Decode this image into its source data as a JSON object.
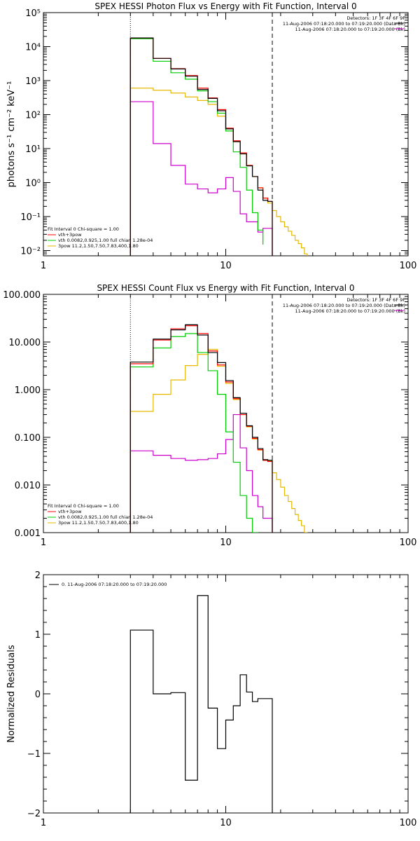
{
  "chart_data": [
    {
      "type": "line",
      "title": "SPEX HESSI Photon Flux vs Energy with Fit Function, Interval 0",
      "ylabel": "photons s⁻¹ cm⁻² keV⁻¹",
      "xlabel": "",
      "x_scale": "log",
      "y_scale": "log",
      "xlim": [
        1,
        100
      ],
      "ylim": [
        0.007,
        100000
      ],
      "x_ticks": [
        1,
        10,
        100
      ],
      "x_tick_labels": [
        "1",
        "10",
        "100"
      ],
      "y_ticks": [
        0.01,
        0.1,
        1,
        10,
        100,
        1000,
        10000,
        100000
      ],
      "y_tick_labels": [
        "10⁻²",
        "10⁻¹",
        "10⁰",
        "10¹",
        "10²",
        "10³",
        "10⁴",
        "10⁵"
      ],
      "vlines": [
        {
          "x": 3,
          "style": "dotted"
        },
        {
          "x": 18,
          "style": "dashed"
        }
      ],
      "legend_top_right": [
        "Detectors: 1F 3F 4F 6F 9F",
        "11-Aug-2006 07:18:20.000 to 07:19:20.000 (Data-Bk)",
        "11-Aug-2006 07:18:20.000 to 07:19:20.000 (Bk)"
      ],
      "legend_bottom_left": {
        "header": "Fit Interval 0   Chi-square = 1.00",
        "entries": [
          "vth+3pow",
          "vth 0.0082,0.925,1.00  full chian 1.28e-04",
          "3pow 11.2,1.50,7.50,7.83,400,1.80"
        ]
      },
      "colors": {
        "data": "#000000",
        "background": "#cc00cc",
        "total": "#ff0000",
        "thermal": "#00cc00",
        "power": "#e6b800"
      },
      "series": [
        {
          "name": "",
          "key": "data",
          "edges": [
            3,
            4,
            5,
            6,
            7,
            8,
            9,
            10,
            11,
            12,
            13,
            14,
            15,
            16,
            17,
            18
          ],
          "values": [
            18000,
            4500,
            2200,
            1350,
            550,
            300,
            130,
            38,
            16,
            7,
            3.1,
            1.5,
            0.6,
            0.3,
            0.28
          ]
        },
        {
          "name": "vth+3pow",
          "key": "total",
          "edges": [
            3,
            4,
            5,
            6,
            7,
            8,
            9,
            10,
            11,
            12,
            13,
            14,
            15,
            16,
            17,
            18
          ],
          "values": [
            18000,
            4500,
            2250,
            1400,
            600,
            310,
            140,
            40,
            17,
            7.5,
            3.2,
            1.5,
            0.7,
            0.35,
            0.28
          ]
        },
        {
          "name": "vth 0.0082,0.925,1.00  full chian 1.28e-04",
          "key": "thermal",
          "edges": [
            3,
            4,
            5,
            6,
            7,
            8,
            9,
            10,
            11,
            12,
            13,
            14,
            15,
            16
          ],
          "values": [
            17000,
            3700,
            1700,
            1100,
            500,
            240,
            110,
            33,
            8,
            2.8,
            0.6,
            0.13,
            0.04,
            0.015
          ]
        },
        {
          "name": "3pow 11.2,1.50,7.50,7.83,400,1.80",
          "key": "power",
          "edges": [
            3,
            4,
            5,
            6,
            7,
            8,
            9,
            10,
            11,
            12,
            13,
            14,
            15,
            16,
            17,
            18,
            19,
            20,
            21,
            22,
            23,
            24,
            25,
            26,
            27,
            28
          ],
          "values": [
            600,
            520,
            430,
            330,
            260,
            200,
            90,
            38,
            16,
            7,
            3.2,
            1.5,
            0.7,
            0.35,
            0.25,
            0.15,
            0.1,
            0.07,
            0.05,
            0.037,
            0.028,
            0.02,
            0.016,
            0.012,
            0.008
          ]
        },
        {
          "name": "",
          "key": "background",
          "edges": [
            3,
            4,
            5,
            6,
            7,
            8,
            9,
            10,
            11,
            12,
            13,
            14,
            15,
            16,
            17,
            18
          ],
          "values": [
            240,
            14,
            3.2,
            0.9,
            0.65,
            0.5,
            0.65,
            1.4,
            0.55,
            0.12,
            0.07,
            0.07,
            0.035,
            0.045,
            0.045
          ]
        }
      ]
    },
    {
      "type": "line",
      "title": "SPEX HESSI Count Flux vs Energy with Fit Function, Interval 0",
      "ylabel": "",
      "xlabel": "",
      "x_scale": "log",
      "y_scale": "log",
      "xlim": [
        1,
        100
      ],
      "ylim": [
        0.001,
        100
      ],
      "x_ticks": [
        1,
        10,
        100
      ],
      "x_tick_labels": [
        "1",
        "10",
        "100"
      ],
      "y_ticks": [
        0.001,
        0.01,
        0.1,
        1,
        10,
        100
      ],
      "y_tick_labels": [
        "0.001",
        "0.010",
        "0.100",
        "1.000",
        "10.000",
        "100.000"
      ],
      "vlines": [
        {
          "x": 3,
          "style": "dotted"
        },
        {
          "x": 18,
          "style": "dashed"
        }
      ],
      "legend_top_right": [
        "Detectors: 1F 3F 4F 6F 9F",
        "11-Aug-2006 07:18:20.000 to 07:19:20.000 (Data-Bk)",
        "11-Aug-2006 07:18:20.000 to 07:19:20.000 (Bk)"
      ],
      "legend_bottom_left": {
        "header": "Fit Interval 0   Chi-square = 1.00",
        "entries": [
          "vth+3pow",
          "vth 0.0082,0.925,1.00  full chian 1.28e-04",
          "3pow 11.2,1.50,7.50,7.83,400,1.80"
        ]
      },
      "colors": {
        "data": "#000000",
        "background": "#cc00cc",
        "total": "#ff0000",
        "thermal": "#00cc00",
        "power": "#e6b800"
      },
      "series": [
        {
          "name": "",
          "key": "data",
          "edges": [
            3,
            4,
            5,
            6,
            7,
            8,
            9,
            10,
            11,
            12,
            13,
            14,
            15,
            16,
            17,
            18
          ],
          "values": [
            3.8,
            11.5,
            18,
            23,
            14,
            6,
            3.7,
            1.55,
            0.68,
            0.32,
            0.175,
            0.1,
            0.058,
            0.034,
            0.033
          ]
        },
        {
          "name": "vth+3pow",
          "key": "total",
          "edges": [
            3,
            4,
            5,
            6,
            7,
            8,
            9,
            10,
            11,
            12,
            13,
            14,
            15,
            16,
            17,
            18
          ],
          "values": [
            3.5,
            11,
            19,
            22,
            15,
            6.5,
            3.3,
            1.45,
            0.65,
            0.3,
            0.17,
            0.095,
            0.055,
            0.033,
            0.031
          ]
        },
        {
          "name": "vth 0.0082,0.925,1.00  full chian 1.28e-04",
          "key": "thermal",
          "edges": [
            3,
            4,
            5,
            6,
            7,
            8,
            9,
            10,
            11,
            12,
            13,
            14,
            15
          ],
          "values": [
            3.0,
            7.5,
            13,
            15,
            6,
            2.5,
            0.8,
            0.13,
            0.03,
            0.006,
            0.002,
            0.0009
          ]
        },
        {
          "name": "3pow 11.2,1.50,7.50,7.83,400,1.80",
          "key": "power",
          "edges": [
            3,
            4,
            5,
            6,
            7,
            8,
            9,
            10,
            11,
            12,
            13,
            14,
            15,
            16,
            17,
            18,
            19,
            20,
            21,
            22,
            23,
            24,
            25,
            26,
            27,
            28
          ],
          "values": [
            0.35,
            0.8,
            1.6,
            3.2,
            5.5,
            7,
            3.1,
            1.35,
            0.62,
            0.3,
            0.165,
            0.092,
            0.054,
            0.033,
            0.032,
            0.018,
            0.013,
            0.009,
            0.006,
            0.0045,
            0.0032,
            0.0024,
            0.0018,
            0.0014,
            0.001
          ]
        },
        {
          "name": "",
          "key": "background",
          "edges": [
            3,
            4,
            5,
            6,
            7,
            8,
            9,
            10,
            11,
            12,
            13,
            14,
            15,
            16,
            17,
            18
          ],
          "values": [
            0.052,
            0.042,
            0.036,
            0.033,
            0.034,
            0.036,
            0.045,
            0.09,
            0.3,
            0.06,
            0.02,
            0.006,
            0.0035,
            0.002,
            0.002
          ]
        }
      ]
    },
    {
      "type": "line",
      "title": "",
      "ylabel": "Normalized Residuals",
      "xlabel": "",
      "x_scale": "log",
      "y_scale": "linear",
      "xlim": [
        1,
        100
      ],
      "ylim": [
        -2,
        2
      ],
      "x_ticks": [
        1,
        10,
        100
      ],
      "x_tick_labels": [
        "1",
        "10",
        "100"
      ],
      "y_ticks": [
        -2,
        -1,
        0,
        1,
        2
      ],
      "y_tick_labels": [
        "−2",
        "−1",
        "0",
        "1",
        "2"
      ],
      "legend": [
        "0. 11-Aug-2006 07:18:20.000 to 07:19:20.000"
      ],
      "colors": {
        "data": "#000000"
      },
      "series": [
        {
          "name": "0. 11-Aug-2006 07:18:20.000 to 07:19:20.000",
          "key": "data",
          "edges": [
            3,
            4,
            5,
            6,
            7,
            8,
            9,
            10,
            11,
            12,
            13,
            14,
            15,
            16,
            17,
            18
          ],
          "values": [
            1.07,
            0.0,
            0.02,
            -1.45,
            1.65,
            -0.24,
            -0.92,
            -0.44,
            -0.2,
            0.32,
            0.03,
            -0.13,
            -0.08,
            -0.08,
            -0.08
          ]
        }
      ]
    }
  ]
}
